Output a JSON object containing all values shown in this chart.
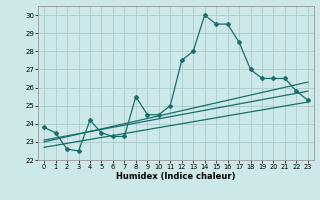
{
  "title": "",
  "xlabel": "Humidex (Indice chaleur)",
  "ylabel": "",
  "background_color": "#cce8e8",
  "grid_color": "#aacccc",
  "line_color": "#1a6e6a",
  "xlim": [
    -0.5,
    23.5
  ],
  "ylim": [
    22,
    30.5
  ],
  "xticks": [
    0,
    1,
    2,
    3,
    4,
    5,
    6,
    7,
    8,
    9,
    10,
    11,
    12,
    13,
    14,
    15,
    16,
    17,
    18,
    19,
    20,
    21,
    22,
    23
  ],
  "yticks": [
    22,
    23,
    24,
    25,
    26,
    27,
    28,
    29,
    30
  ],
  "line1_x": [
    0,
    1,
    2,
    3,
    4,
    5,
    6,
    7,
    8,
    9,
    10,
    11,
    12,
    13,
    14,
    15,
    16,
    17,
    18,
    19,
    20,
    21,
    22,
    23
  ],
  "line1_y": [
    23.8,
    23.5,
    22.6,
    22.5,
    24.2,
    23.5,
    23.3,
    23.3,
    25.5,
    24.5,
    24.5,
    25.0,
    27.5,
    28.0,
    30.0,
    29.5,
    29.5,
    28.5,
    27.0,
    26.5,
    26.5,
    26.5,
    25.8,
    25.3
  ],
  "line2_x": [
    0,
    23
  ],
  "line2_y": [
    22.7,
    25.2
  ],
  "line3_x": [
    0,
    23
  ],
  "line3_y": [
    23.0,
    26.3
  ],
  "line4_x": [
    0,
    23
  ],
  "line4_y": [
    23.1,
    25.8
  ]
}
